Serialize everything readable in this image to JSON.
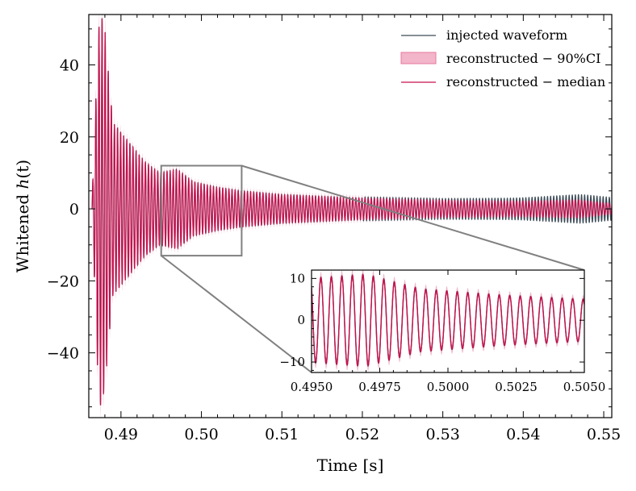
{
  "chart_data": {
    "type": "line",
    "title": "",
    "xlabel": "Time [s]",
    "ylabel_prefix": "Whitened ",
    "ylabel_var": "h",
    "ylabel_suffix": "(t)",
    "xlim": [
      0.486,
      0.551
    ],
    "ylim": [
      -58,
      54
    ],
    "xticks": [
      0.49,
      0.5,
      0.51,
      0.52,
      0.53,
      0.54,
      0.55
    ],
    "xtick_labels": [
      "0.49",
      "0.50",
      "0.51",
      "0.52",
      "0.53",
      "0.54",
      "0.55"
    ],
    "yticks": [
      -40,
      -20,
      0,
      20,
      40
    ],
    "ytick_labels": [
      "−40",
      "−20",
      "0",
      "20",
      "40"
    ],
    "legend": {
      "location": "top-right",
      "entries": [
        {
          "label": "injected waveform",
          "kind": "line",
          "color": "#3b4a56"
        },
        {
          "label": "reconstructed − 90%CI",
          "kind": "band",
          "color": "#e8799e"
        },
        {
          "label": "reconstructed − median",
          "kind": "line",
          "color": "#c8104e"
        }
      ]
    },
    "series": [
      {
        "name": "injected waveform",
        "color": "#3b4a56"
      },
      {
        "name": "reconstructed − 90%CI",
        "color": "#e8799e"
      },
      {
        "name": "reconstructed − median",
        "color": "#c8104e"
      }
    ],
    "zoom_box": {
      "xlim": [
        0.495,
        0.505
      ],
      "ylim": [
        -13,
        12
      ]
    },
    "inset": {
      "xlim": [
        0.495,
        0.505
      ],
      "ylim": [
        -12.5,
        12
      ],
      "xticks": [
        0.495,
        0.4975,
        0.5,
        0.5025,
        0.505
      ],
      "xtick_labels": [
        "0.4950",
        "0.4975",
        "0.5000",
        "0.5025",
        "0.5050"
      ],
      "yticks": [
        -10,
        0,
        10
      ],
      "ytick_labels": [
        "−10",
        "0",
        "10"
      ]
    },
    "waveform_model": {
      "start": 0.4864,
      "end": 0.551,
      "frequency_hz": 2600,
      "envelope": [
        [
          0.4864,
          2
        ],
        [
          0.4868,
          25
        ],
        [
          0.4871,
          45
        ],
        [
          0.4874,
          55
        ],
        [
          0.488,
          50
        ],
        [
          0.4885,
          36
        ],
        [
          0.489,
          24
        ],
        [
          0.493,
          13
        ],
        [
          0.4948,
          10
        ],
        [
          0.497,
          11
        ],
        [
          0.499,
          7.5
        ],
        [
          0.502,
          6
        ],
        [
          0.505,
          5
        ],
        [
          0.51,
          4
        ],
        [
          0.52,
          3
        ],
        [
          0.53,
          2.4
        ],
        [
          0.54,
          2.2
        ],
        [
          0.547,
          2.5
        ],
        [
          0.549,
          2.0
        ],
        [
          0.551,
          1.5
        ]
      ],
      "injected_deviation": [
        [
          0.52,
          0.5
        ],
        [
          0.53,
          0.7
        ],
        [
          0.538,
          1.0
        ],
        [
          0.544,
          1.6
        ],
        [
          0.548,
          2.0
        ]
      ]
    }
  }
}
